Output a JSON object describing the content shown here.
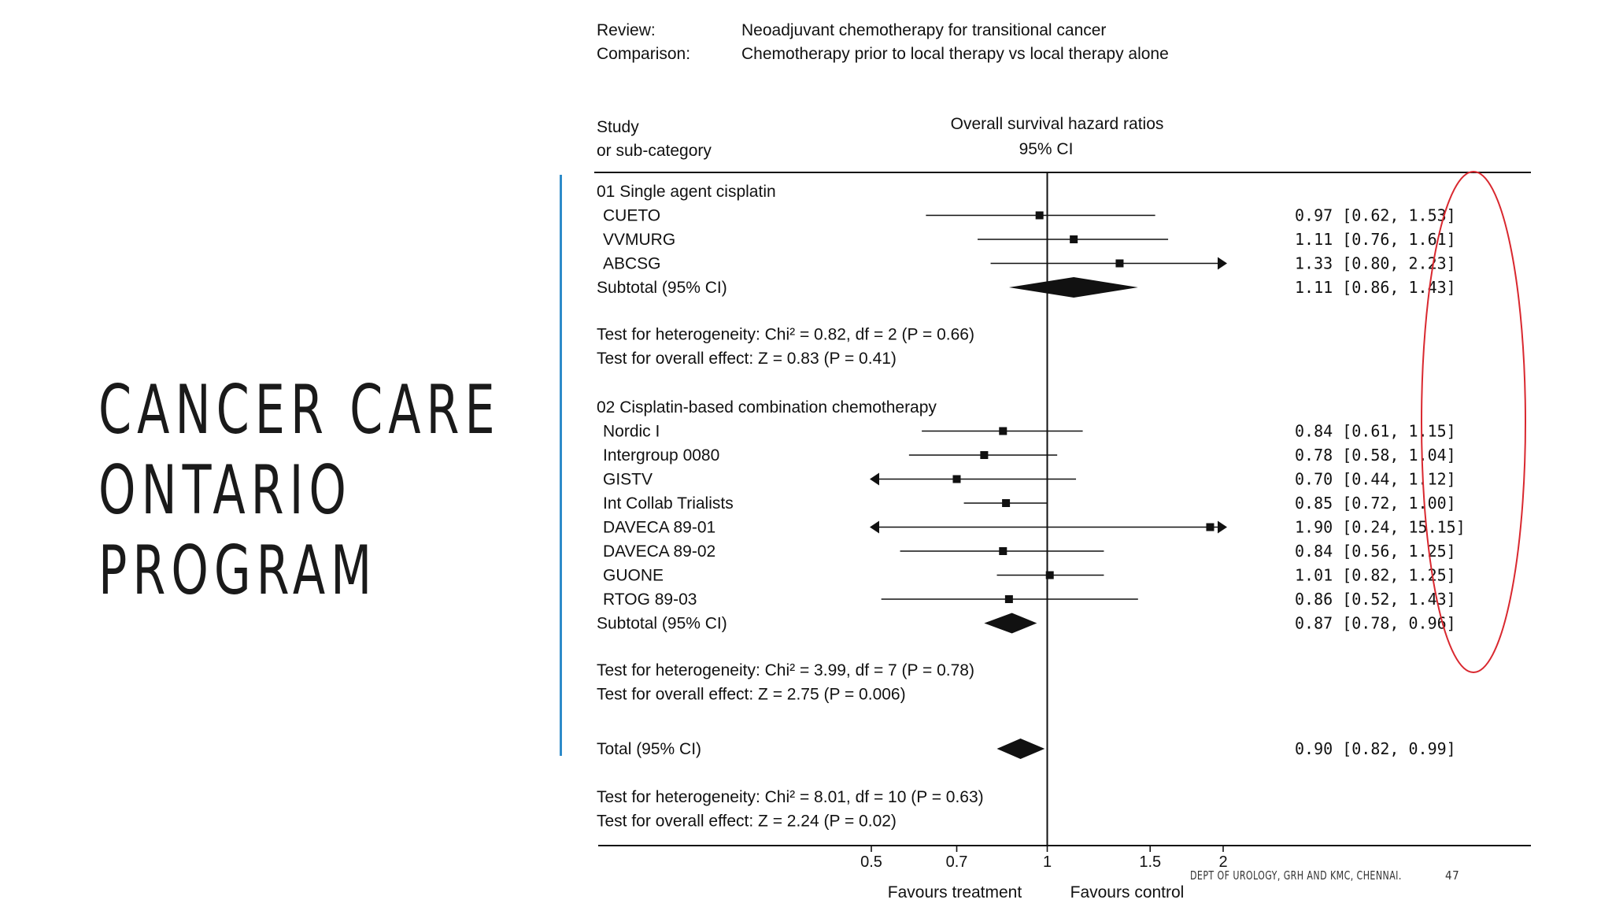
{
  "slide": {
    "title_lines": [
      "CANCER CARE",
      "ONTARIO",
      "PROGRAM"
    ],
    "footer_dept": "DEPT OF UROLOGY, GRH AND KMC, CHENNAI.",
    "page_number": "47",
    "accent_color": "#2e8bc9"
  },
  "chart_data": {
    "type": "forest",
    "review_label": "Review:",
    "review_text": "Neoadjuvant chemotherapy for transitional cancer",
    "comparison_label": "Comparison:",
    "comparison_text": "Chemotherapy prior to local therapy vs local therapy alone",
    "col_study_1": "Study",
    "col_study_2": "or sub-category",
    "col_measure_1": "Overall survival hazard ratios",
    "col_measure_2": "95% CI",
    "x_scale": "log",
    "xlim": [
      0.5,
      2
    ],
    "x_ticks": [
      0.5,
      0.7,
      1,
      1.5,
      2
    ],
    "x_tick_labels": [
      "0.5",
      "0.7",
      "1",
      "1.5",
      "2"
    ],
    "favours_left": "Favours treatment",
    "favours_right": "Favours control",
    "highlight_color": "#d9282f",
    "groups": [
      {
        "title": "01 Single agent cisplatin",
        "studies": [
          {
            "name": "CUETO",
            "hr": 0.97,
            "lo": 0.62,
            "hi": 1.53,
            "text": "0.97 [0.62, 1.53]"
          },
          {
            "name": "VVMURG",
            "hr": 1.11,
            "lo": 0.76,
            "hi": 1.61,
            "text": "1.11 [0.76, 1.61]"
          },
          {
            "name": "ABCSG",
            "hr": 1.33,
            "lo": 0.8,
            "hi": 2.23,
            "text": "1.33 [0.80, 2.23]"
          }
        ],
        "subtotal": {
          "name": "Subtotal (95% CI)",
          "hr": 1.11,
          "lo": 0.86,
          "hi": 1.43,
          "text": "1.11 [0.86, 1.43]"
        },
        "heterogeneity": "Test for heterogeneity: Chi² = 0.82, df = 2 (P = 0.66)",
        "overall_effect": "Test for overall effect: Z = 0.83 (P = 0.41)"
      },
      {
        "title": "02 Cisplatin-based combination chemotherapy",
        "studies": [
          {
            "name": "Nordic I",
            "hr": 0.84,
            "lo": 0.61,
            "hi": 1.15,
            "text": "0.84 [0.61, 1.15]"
          },
          {
            "name": "Intergroup 0080",
            "hr": 0.78,
            "lo": 0.58,
            "hi": 1.04,
            "text": "0.78 [0.58, 1.04]"
          },
          {
            "name": "GISTV",
            "hr": 0.7,
            "lo": 0.44,
            "hi": 1.12,
            "text": "0.70 [0.44, 1.12]"
          },
          {
            "name": "Int Collab Trialists",
            "hr": 0.85,
            "lo": 0.72,
            "hi": 1.0,
            "text": "0.85 [0.72, 1.00]"
          },
          {
            "name": "DAVECA 89-01",
            "hr": 1.9,
            "lo": 0.24,
            "hi": 15.15,
            "text": "1.90 [0.24, 15.15]"
          },
          {
            "name": "DAVECA 89-02",
            "hr": 0.84,
            "lo": 0.56,
            "hi": 1.25,
            "text": "0.84 [0.56, 1.25]"
          },
          {
            "name": "GUONE",
            "hr": 1.01,
            "lo": 0.82,
            "hi": 1.25,
            "text": "1.01 [0.82, 1.25]"
          },
          {
            "name": "RTOG 89-03",
            "hr": 0.86,
            "lo": 0.52,
            "hi": 1.43,
            "text": "0.86 [0.52, 1.43]"
          }
        ],
        "subtotal": {
          "name": "Subtotal (95% CI)",
          "hr": 0.87,
          "lo": 0.78,
          "hi": 0.96,
          "text": "0.87 [0.78, 0.96]"
        },
        "heterogeneity": "Test for heterogeneity: Chi² = 3.99, df = 7 (P = 0.78)",
        "overall_effect": "Test for overall effect: Z = 2.75 (P = 0.006)"
      }
    ],
    "total": {
      "name": "Total (95% CI)",
      "hr": 0.9,
      "lo": 0.82,
      "hi": 0.99,
      "text": "0.90 [0.82, 0.99]",
      "heterogeneity": "Test for heterogeneity: Chi² = 8.01, df = 10 (P = 0.63)",
      "overall_effect": "Test for overall effect: Z = 2.24 (P = 0.02)"
    }
  }
}
